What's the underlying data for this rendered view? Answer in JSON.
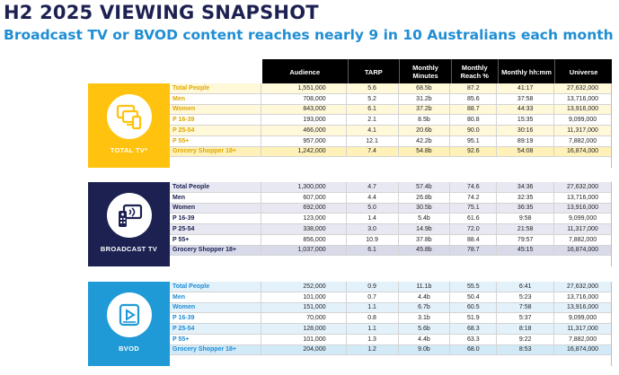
{
  "title": "H2 2025 VIEWING SNAPSHOT",
  "subtitle": "Broadcast TV or BVOD content reaches nearly 9 in 10 Australians each month",
  "colors": {
    "total_tv": "#ffc20e",
    "broadcast_tv": "#1c2151",
    "bvod": "#1f9ad6",
    "title": "#1c2151",
    "subtitle": "#1f8ed4"
  },
  "headers": {
    "audience": "Audience",
    "tarp": "TARP",
    "monthly_minutes": "Monthly Minutes",
    "monthly_reach": "Monthly Reach %",
    "monthly_hhmm": "Monthly hh:mm",
    "universe": "Universe"
  },
  "groups": [
    {
      "label": "TOTAL TV*",
      "icon": "screens-icon",
      "rows": [
        {
          "demo": "Total People",
          "audience": "1,551,000",
          "tarp": "5.6",
          "minutes": "68.5b",
          "reach": "87.2",
          "hhmm": "41:17",
          "universe": "27,632,000"
        },
        {
          "demo": "Men",
          "audience": "708,000",
          "tarp": "5.2",
          "minutes": "31.2b",
          "reach": "85.6",
          "hhmm": "37:58",
          "universe": "13,716,000"
        },
        {
          "demo": "Women",
          "audience": "843,000",
          "tarp": "6.1",
          "minutes": "37.2b",
          "reach": "88.7",
          "hhmm": "44:33",
          "universe": "13,916,000"
        },
        {
          "demo": "P 16-39",
          "audience": "193,000",
          "tarp": "2.1",
          "minutes": "8.5b",
          "reach": "80.8",
          "hhmm": "15:35",
          "universe": "9,099,000"
        },
        {
          "demo": "P 25-54",
          "audience": "466,000",
          "tarp": "4.1",
          "minutes": "20.6b",
          "reach": "90.0",
          "hhmm": "30:16",
          "universe": "11,317,000"
        },
        {
          "demo": "P 55+",
          "audience": "957,000",
          "tarp": "12.1",
          "minutes": "42.2b",
          "reach": "95.1",
          "hhmm": "89:19",
          "universe": "7,882,000"
        },
        {
          "demo": "Grocery Shopper 18+",
          "audience": "1,242,000",
          "tarp": "7.4",
          "minutes": "54.8b",
          "reach": "92.6",
          "hhmm": "54:08",
          "universe": "16,874,000"
        }
      ]
    },
    {
      "label": "BROADCAST TV",
      "icon": "tv-remote-icon",
      "rows": [
        {
          "demo": "Total People",
          "audience": "1,300,000",
          "tarp": "4.7",
          "minutes": "57.4b",
          "reach": "74.6",
          "hhmm": "34:36",
          "universe": "27,632,000"
        },
        {
          "demo": "Men",
          "audience": "607,000",
          "tarp": "4.4",
          "minutes": "26.8b",
          "reach": "74.2",
          "hhmm": "32:35",
          "universe": "13,716,000"
        },
        {
          "demo": "Women",
          "audience": "692,000",
          "tarp": "5.0",
          "minutes": "30.5b",
          "reach": "75.1",
          "hhmm": "36:35",
          "universe": "13,916,000"
        },
        {
          "demo": "P 16-39",
          "audience": "123,000",
          "tarp": "1.4",
          "minutes": "5.4b",
          "reach": "61.6",
          "hhmm": "9:58",
          "universe": "9,099,000"
        },
        {
          "demo": "P 25-54",
          "audience": "338,000",
          "tarp": "3.0",
          "minutes": "14.9b",
          "reach": "72.0",
          "hhmm": "21:58",
          "universe": "11,317,000"
        },
        {
          "demo": "P 55+",
          "audience": "856,000",
          "tarp": "10.9",
          "minutes": "37.8b",
          "reach": "88.4",
          "hhmm": "79:57",
          "universe": "7,882,000"
        },
        {
          "demo": "Grocery Shopper 18+",
          "audience": "1,037,000",
          "tarp": "6.1",
          "minutes": "45.8b",
          "reach": "78.7",
          "hhmm": "45:15",
          "universe": "16,874,000"
        }
      ]
    },
    {
      "label": "BVOD",
      "icon": "bvod-play-icon",
      "rows": [
        {
          "demo": "Total People",
          "audience": "252,000",
          "tarp": "0.9",
          "minutes": "11.1b",
          "reach": "55.5",
          "hhmm": "6:41",
          "universe": "27,632,000"
        },
        {
          "demo": "Men",
          "audience": "101,000",
          "tarp": "0.7",
          "minutes": "4.4b",
          "reach": "50.4",
          "hhmm": "5:23",
          "universe": "13,716,000"
        },
        {
          "demo": "Women",
          "audience": "151,000",
          "tarp": "1.1",
          "minutes": "6.7b",
          "reach": "60.5",
          "hhmm": "7:58",
          "universe": "13,916,000"
        },
        {
          "demo": "P 16-39",
          "audience": "70,000",
          "tarp": "0.8",
          "minutes": "3.1b",
          "reach": "51.9",
          "hhmm": "5:37",
          "universe": "9,099,000"
        },
        {
          "demo": "P 25-54",
          "audience": "128,000",
          "tarp": "1.1",
          "minutes": "5.6b",
          "reach": "68.3",
          "hhmm": "8:18",
          "universe": "11,317,000"
        },
        {
          "demo": "P 55+",
          "audience": "101,000",
          "tarp": "1.3",
          "minutes": "4.4b",
          "reach": "63.3",
          "hhmm": "9:22",
          "universe": "7,882,000"
        },
        {
          "demo": "Grocery Shopper 18+",
          "audience": "204,000",
          "tarp": "1.2",
          "minutes": "9.0b",
          "reach": "68.0",
          "hhmm": "8:53",
          "universe": "16,874,000"
        }
      ]
    }
  ]
}
